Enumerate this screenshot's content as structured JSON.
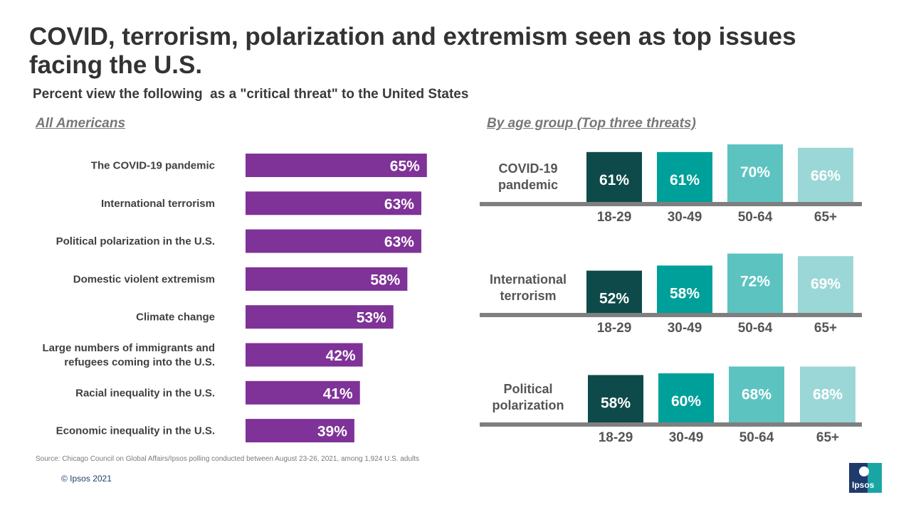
{
  "title": "COVID, terrorism, polarization and extremism seen as top issues facing the U.S.",
  "subtitle": "Percent view the following  as a \"critical threat\" to the United States",
  "left_section_label": "All Americans",
  "right_section_label": "By age group (Top three threats)",
  "source": "Source: Chicago Council on Global Affairs/Ipsos polling conducted between August 23-26, 2021, among 1,924 U.S. adults",
  "copyright": "© Ipsos 2021",
  "logo_text": "Ipsos",
  "colors": {
    "bar_purple": "#7f3297",
    "age_colors": [
      "#0e4a4a",
      "#00a09a",
      "#5cc3c1",
      "#9bd7d6"
    ],
    "axis": "#7f7f7f"
  },
  "chart_data": [
    {
      "type": "bar",
      "orientation": "horizontal",
      "title": "All Americans",
      "categories": [
        [
          "The COVID-19 pandemic"
        ],
        [
          "International terrorism"
        ],
        [
          "Political polarization in the U.S."
        ],
        [
          "Domestic violent extremism"
        ],
        [
          "Climate change"
        ],
        [
          "Large numbers of immigrants and",
          "refugees coming into the U.S."
        ],
        [
          "Racial inequality in the U.S."
        ],
        [
          "Economic inequality in the U.S."
        ]
      ],
      "values": [
        65,
        63,
        63,
        58,
        53,
        42,
        41,
        39
      ],
      "labels": [
        "65%",
        "63%",
        "63%",
        "58%",
        "53%",
        "42%",
        "41%",
        "39%"
      ],
      "xlim": [
        0,
        100
      ]
    },
    {
      "type": "bar",
      "orientation": "vertical",
      "title": "By age group (Top three threats)",
      "age_groups": [
        "18-29",
        "30-49",
        "50-64",
        "65+"
      ],
      "ylim": [
        0,
        100
      ],
      "groups": [
        {
          "name": [
            "COVID-19",
            "pandemic"
          ],
          "values": [
            61,
            61,
            70,
            66
          ],
          "labels": [
            "61%",
            "61%",
            "70%",
            "66%"
          ]
        },
        {
          "name": [
            "International",
            "terrorism"
          ],
          "values": [
            52,
            58,
            72,
            69
          ],
          "labels": [
            "52%",
            "58%",
            "72%",
            "69%"
          ]
        },
        {
          "name": [
            "Political",
            "polarization"
          ],
          "values": [
            58,
            60,
            68,
            68
          ],
          "labels": [
            "58%",
            "60%",
            "68%",
            "68%"
          ]
        }
      ]
    }
  ]
}
